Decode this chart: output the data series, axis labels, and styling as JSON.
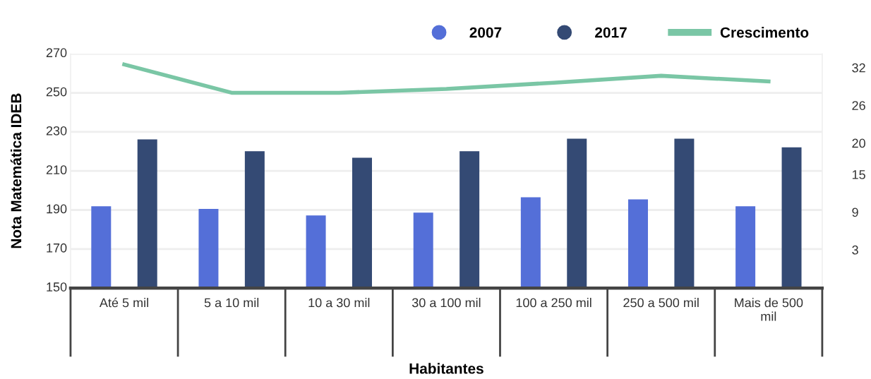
{
  "chart_data": {
    "type": "bar",
    "categories": [
      "Até 5 mil",
      "5 a 10 mil",
      "10 a 30 mil",
      "30 a 100 mil",
      "100 a 250 mil",
      "250 a 500 mil",
      "Mais de 500 mil"
    ],
    "series": [
      {
        "name": "2007",
        "color": "#546fd8",
        "values": [
          191.9,
          190.5,
          187.2,
          188.6,
          196.5,
          195.4,
          191.9
        ]
      },
      {
        "name": "2017",
        "color": "#344a74",
        "values": [
          226.2,
          220.1,
          216.8,
          220.1,
          226.5,
          226.5,
          222.1
        ]
      },
      {
        "name": "Crescimento",
        "type": "line",
        "axis": "y2",
        "color": "#7ac6a5",
        "values": [
          32.5,
          28.0,
          28.0,
          28.6,
          29.6,
          30.7,
          29.8
        ]
      }
    ],
    "xlabel": "Habitantes",
    "ylabel": "Nota Matemática IDEB",
    "ylim": [
      150,
      270
    ],
    "yticks": [
      150,
      170,
      190,
      210,
      230,
      250,
      270
    ],
    "y2lim": [
      -3.1,
      34.2
    ],
    "y2ticks": [
      3,
      9,
      15,
      20,
      26,
      32
    ],
    "grid": "y",
    "legend": "top right",
    "marker": "none",
    "line_style": "solid"
  }
}
